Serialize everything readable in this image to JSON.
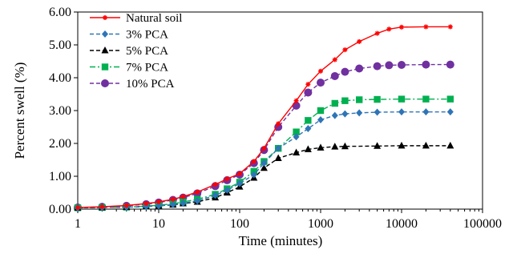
{
  "chart_data": {
    "type": "line",
    "xlabel": "Time (minutes)",
    "ylabel": "Percent swell (%)",
    "xscale": "log",
    "xlim": [
      1,
      100000
    ],
    "ylim": [
      0,
      6
    ],
    "x_ticks": [
      "1",
      "10",
      "100",
      "1000",
      "10000",
      "100000"
    ],
    "y_ticks": [
      "0.00",
      "1.00",
      "2.00",
      "3.00",
      "4.00",
      "5.00",
      "6.00"
    ],
    "legend_position": "top-left",
    "grid": false,
    "series": [
      {
        "name": "Natural soil",
        "color": "#ff0000",
        "line_style": "solid",
        "marker": "star",
        "points": [
          [
            1,
            0.05
          ],
          [
            2,
            0.07
          ],
          [
            4,
            0.11
          ],
          [
            7,
            0.17
          ],
          [
            10,
            0.22
          ],
          [
            15,
            0.3
          ],
          [
            20,
            0.38
          ],
          [
            30,
            0.52
          ],
          [
            50,
            0.75
          ],
          [
            70,
            0.92
          ],
          [
            100,
            1.08
          ],
          [
            150,
            1.45
          ],
          [
            200,
            1.85
          ],
          [
            300,
            2.6
          ],
          [
            500,
            3.3
          ],
          [
            700,
            3.8
          ],
          [
            1000,
            4.2
          ],
          [
            1500,
            4.55
          ],
          [
            2000,
            4.85
          ],
          [
            3000,
            5.1
          ],
          [
            5000,
            5.35
          ],
          [
            7000,
            5.48
          ],
          [
            10000,
            5.54
          ],
          [
            20000,
            5.55
          ],
          [
            40000,
            5.55
          ]
        ]
      },
      {
        "name": "3% PCA",
        "color": "#2e75b6",
        "line_style": "dashed",
        "marker": "diamond",
        "points": [
          [
            1,
            0.04
          ],
          [
            2,
            0.05
          ],
          [
            4,
            0.06
          ],
          [
            7,
            0.08
          ],
          [
            10,
            0.1
          ],
          [
            15,
            0.14
          ],
          [
            20,
            0.18
          ],
          [
            30,
            0.25
          ],
          [
            50,
            0.42
          ],
          [
            70,
            0.58
          ],
          [
            100,
            0.78
          ],
          [
            150,
            1.05
          ],
          [
            200,
            1.4
          ],
          [
            300,
            1.85
          ],
          [
            500,
            2.2
          ],
          [
            700,
            2.45
          ],
          [
            1000,
            2.72
          ],
          [
            1500,
            2.85
          ],
          [
            2000,
            2.9
          ],
          [
            3000,
            2.93
          ],
          [
            5000,
            2.95
          ],
          [
            10000,
            2.96
          ],
          [
            20000,
            2.96
          ],
          [
            40000,
            2.96
          ]
        ]
      },
      {
        "name": "5% PCA",
        "color": "#000000",
        "line_style": "dashed",
        "marker": "triangle",
        "points": [
          [
            1,
            0.04
          ],
          [
            2,
            0.05
          ],
          [
            4,
            0.06
          ],
          [
            7,
            0.08
          ],
          [
            10,
            0.1
          ],
          [
            15,
            0.13
          ],
          [
            20,
            0.17
          ],
          [
            30,
            0.22
          ],
          [
            50,
            0.35
          ],
          [
            70,
            0.5
          ],
          [
            100,
            0.68
          ],
          [
            150,
            0.95
          ],
          [
            200,
            1.25
          ],
          [
            300,
            1.55
          ],
          [
            500,
            1.72
          ],
          [
            700,
            1.82
          ],
          [
            1000,
            1.87
          ],
          [
            1500,
            1.9
          ],
          [
            2000,
            1.91
          ],
          [
            5000,
            1.92
          ],
          [
            10000,
            1.93
          ],
          [
            20000,
            1.93
          ],
          [
            40000,
            1.93
          ]
        ]
      },
      {
        "name": "7% PCA",
        "color": "#00b050",
        "line_style": "dashdot",
        "marker": "square",
        "points": [
          [
            1,
            0.04
          ],
          [
            2,
            0.05
          ],
          [
            4,
            0.06
          ],
          [
            7,
            0.09
          ],
          [
            10,
            0.12
          ],
          [
            15,
            0.16
          ],
          [
            20,
            0.22
          ],
          [
            30,
            0.3
          ],
          [
            50,
            0.45
          ],
          [
            70,
            0.62
          ],
          [
            100,
            0.82
          ],
          [
            150,
            1.15
          ],
          [
            200,
            1.45
          ],
          [
            300,
            1.85
          ],
          [
            500,
            2.35
          ],
          [
            700,
            2.7
          ],
          [
            1000,
            3.0
          ],
          [
            1500,
            3.22
          ],
          [
            2000,
            3.3
          ],
          [
            3000,
            3.33
          ],
          [
            5000,
            3.34
          ],
          [
            10000,
            3.35
          ],
          [
            20000,
            3.35
          ],
          [
            40000,
            3.35
          ]
        ]
      },
      {
        "name": "10% PCA",
        "color": "#7030a0",
        "line_style": "dashed",
        "marker": "circle",
        "points": [
          [
            1,
            0.05
          ],
          [
            2,
            0.07
          ],
          [
            4,
            0.1
          ],
          [
            7,
            0.15
          ],
          [
            10,
            0.2
          ],
          [
            15,
            0.28
          ],
          [
            20,
            0.35
          ],
          [
            30,
            0.48
          ],
          [
            50,
            0.7
          ],
          [
            70,
            0.88
          ],
          [
            100,
            1.05
          ],
          [
            150,
            1.4
          ],
          [
            200,
            1.8
          ],
          [
            300,
            2.5
          ],
          [
            500,
            3.15
          ],
          [
            700,
            3.55
          ],
          [
            1000,
            3.85
          ],
          [
            1500,
            4.05
          ],
          [
            2000,
            4.18
          ],
          [
            3000,
            4.28
          ],
          [
            5000,
            4.35
          ],
          [
            7000,
            4.38
          ],
          [
            10000,
            4.39
          ],
          [
            20000,
            4.4
          ],
          [
            40000,
            4.4
          ]
        ]
      }
    ]
  }
}
